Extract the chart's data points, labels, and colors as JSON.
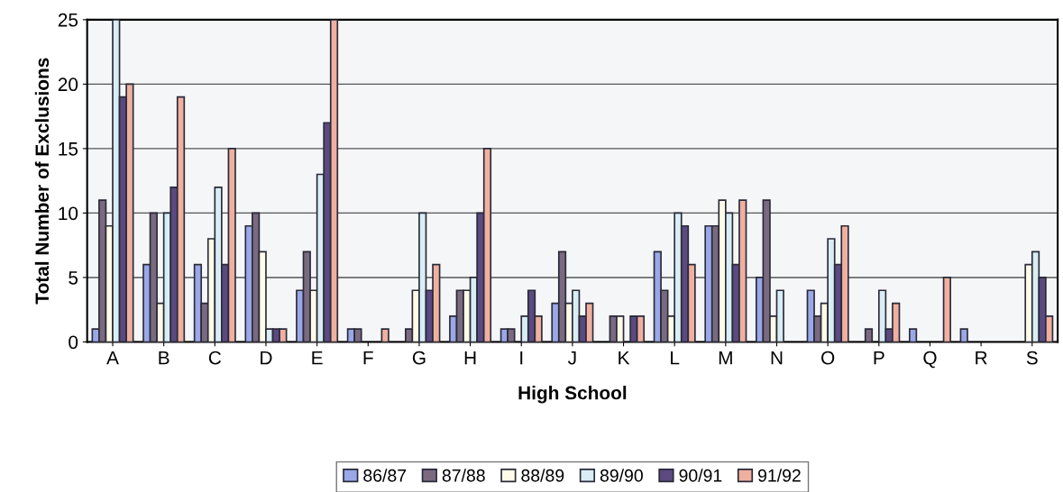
{
  "chart_data": {
    "type": "bar",
    "xlabel": "High School",
    "ylabel": "Total Number of Exclusions",
    "categories": [
      "A",
      "B",
      "C",
      "D",
      "E",
      "F",
      "G",
      "H",
      "I",
      "J",
      "K",
      "L",
      "M",
      "N",
      "O",
      "P",
      "Q",
      "R",
      "S"
    ],
    "series": [
      {
        "name": "86/87",
        "color": "#9aa8e8",
        "values": [
          1,
          6,
          6,
          9,
          4,
          1,
          0,
          2,
          1,
          3,
          0,
          7,
          9,
          5,
          4,
          0,
          1,
          1,
          0
        ]
      },
      {
        "name": "87/88",
        "color": "#7a6a80",
        "values": [
          11,
          10,
          3,
          10,
          7,
          1,
          1,
          4,
          1,
          7,
          2,
          4,
          9,
          11,
          2,
          1,
          0,
          0,
          0
        ]
      },
      {
        "name": "88/89",
        "color": "#fffbe8",
        "values": [
          9,
          3,
          8,
          7,
          4,
          0,
          4,
          4,
          0,
          3,
          2,
          2,
          11,
          2,
          3,
          0,
          0,
          0,
          6
        ]
      },
      {
        "name": "89/90",
        "color": "#d8eef4",
        "values": [
          25,
          10,
          12,
          1,
          13,
          0,
          10,
          5,
          2,
          4,
          0,
          10,
          10,
          4,
          8,
          4,
          0,
          0,
          7
        ]
      },
      {
        "name": "90/91",
        "color": "#5a4a80",
        "values": [
          19,
          12,
          6,
          1,
          17,
          0,
          4,
          10,
          4,
          2,
          2,
          9,
          6,
          0,
          6,
          1,
          0,
          0,
          5
        ]
      },
      {
        "name": "91/92",
        "color": "#f0b0a0",
        "values": [
          20,
          19,
          15,
          1,
          25,
          1,
          6,
          15,
          2,
          3,
          2,
          6,
          11,
          0,
          9,
          3,
          5,
          0,
          2
        ]
      }
    ],
    "ylim": [
      0,
      25
    ],
    "yticks": [
      0,
      5,
      10,
      15,
      20,
      25
    ],
    "grid": "y",
    "legend": "bottom"
  }
}
